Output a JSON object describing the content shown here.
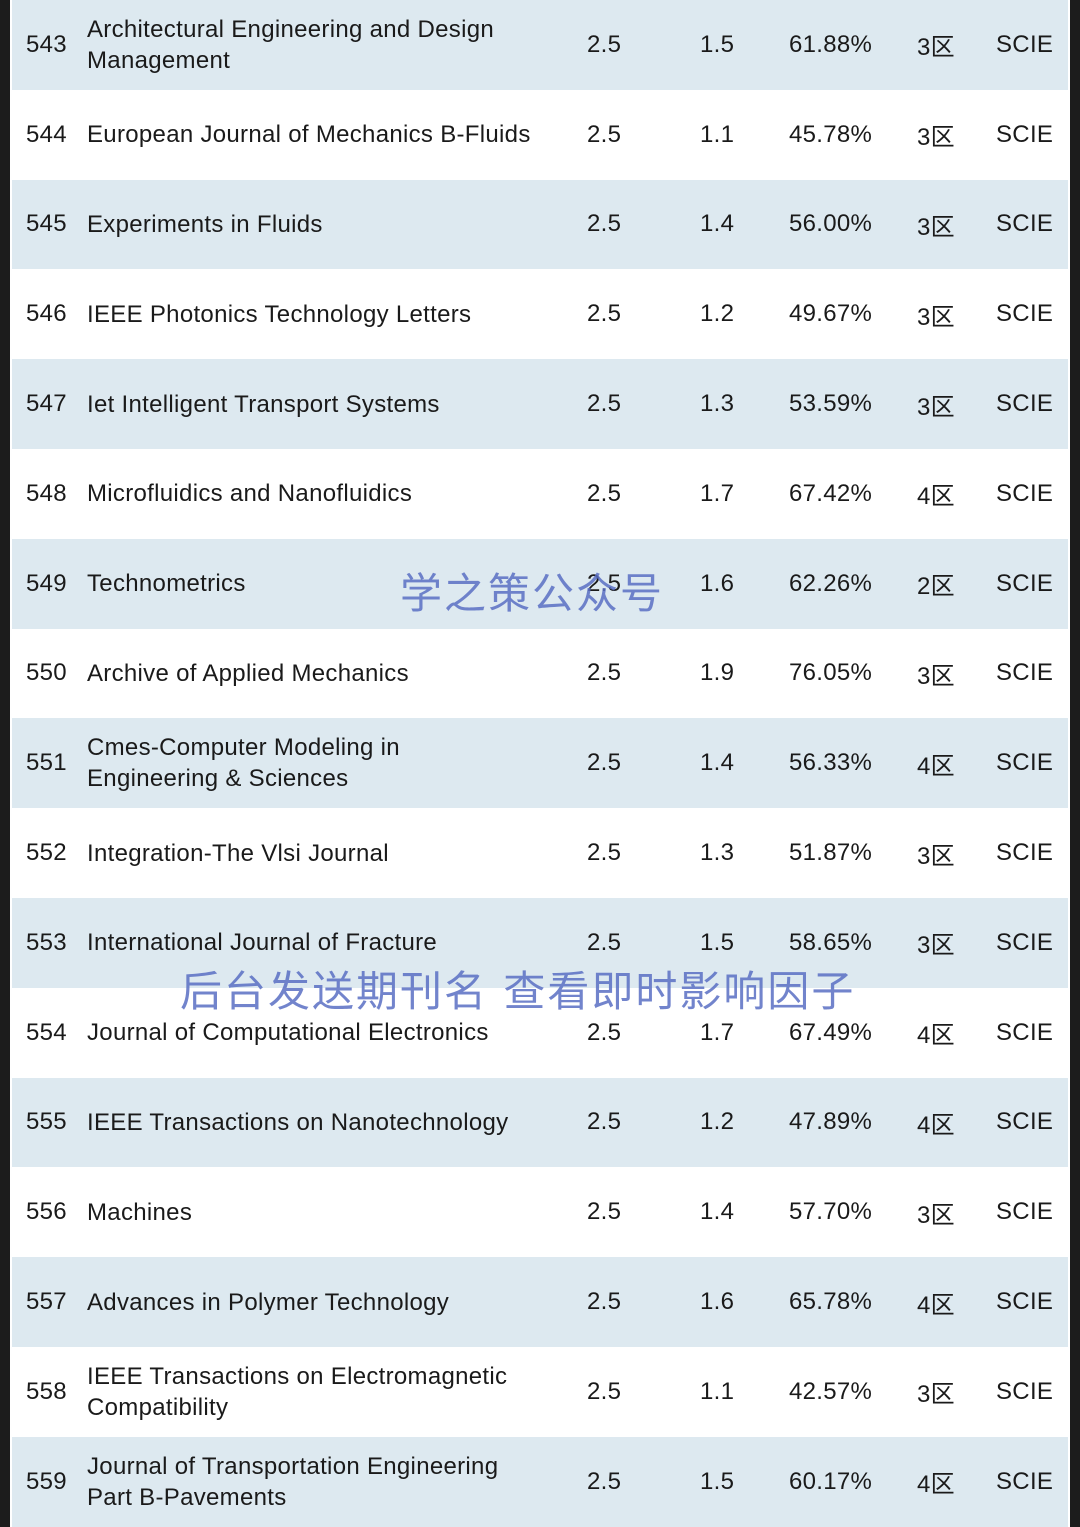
{
  "rows": [
    {
      "num": "543",
      "name": "Architectural Engineering and Design Management",
      "if": "2.5",
      "jci": "1.5",
      "pct": "61.88%",
      "zone": "3区",
      "index": "SCIE"
    },
    {
      "num": "544",
      "name": "European Journal of Mechanics B-Fluids",
      "if": "2.5",
      "jci": "1.1",
      "pct": "45.78%",
      "zone": "3区",
      "index": "SCIE"
    },
    {
      "num": "545",
      "name": "Experiments in Fluids",
      "if": "2.5",
      "jci": "1.4",
      "pct": "56.00%",
      "zone": "3区",
      "index": "SCIE"
    },
    {
      "num": "546",
      "name": "IEEE Photonics Technology Letters",
      "if": "2.5",
      "jci": "1.2",
      "pct": "49.67%",
      "zone": "3区",
      "index": "SCIE"
    },
    {
      "num": "547",
      "name": "Iet Intelligent Transport Systems",
      "if": "2.5",
      "jci": "1.3",
      "pct": "53.59%",
      "zone": "3区",
      "index": "SCIE"
    },
    {
      "num": "548",
      "name": "Microfluidics and Nanofluidics",
      "if": "2.5",
      "jci": "1.7",
      "pct": "67.42%",
      "zone": "4区",
      "index": "SCIE"
    },
    {
      "num": "549",
      "name": "Technometrics",
      "if": "2.5",
      "jci": "1.6",
      "pct": "62.26%",
      "zone": "2区",
      "index": "SCIE"
    },
    {
      "num": "550",
      "name": "Archive of Applied Mechanics",
      "if": "2.5",
      "jci": "1.9",
      "pct": "76.05%",
      "zone": "3区",
      "index": "SCIE"
    },
    {
      "num": "551",
      "name": "Cmes-Computer Modeling in Engineering & Sciences",
      "if": "2.5",
      "jci": "1.4",
      "pct": "56.33%",
      "zone": "4区",
      "index": "SCIE"
    },
    {
      "num": "552",
      "name": "Integration-The Vlsi Journal",
      "if": "2.5",
      "jci": "1.3",
      "pct": "51.87%",
      "zone": "3区",
      "index": "SCIE"
    },
    {
      "num": "553",
      "name": "International Journal of Fracture",
      "if": "2.5",
      "jci": "1.5",
      "pct": "58.65%",
      "zone": "3区",
      "index": "SCIE"
    },
    {
      "num": "554",
      "name": "Journal of Computational Electronics",
      "if": "2.5",
      "jci": "1.7",
      "pct": "67.49%",
      "zone": "4区",
      "index": "SCIE"
    },
    {
      "num": "555",
      "name": "IEEE Transactions on Nanotechnology",
      "if": "2.5",
      "jci": "1.2",
      "pct": "47.89%",
      "zone": "4区",
      "index": "SCIE"
    },
    {
      "num": "556",
      "name": "Machines",
      "if": "2.5",
      "jci": "1.4",
      "pct": "57.70%",
      "zone": "3区",
      "index": "SCIE"
    },
    {
      "num": "557",
      "name": "Advances in Polymer Technology",
      "if": "2.5",
      "jci": "1.6",
      "pct": "65.78%",
      "zone": "4区",
      "index": "SCIE"
    },
    {
      "num": "558",
      "name": "IEEE Transactions on Electromagnetic Compatibility",
      "if": "2.5",
      "jci": "1.1",
      "pct": "42.57%",
      "zone": "3区",
      "index": "SCIE"
    },
    {
      "num": "559",
      "name": "Journal of Transportation Engineering Part B-Pavements",
      "if": "2.5",
      "jci": "1.5",
      "pct": "60.17%",
      "zone": "4区",
      "index": "SCIE"
    }
  ],
  "watermarks": {
    "account": "学之策公众号",
    "instruction": "后台发送期刊名 查看即时影响因子"
  },
  "colors": {
    "row_shaded": "#dde9f0",
    "row_plain": "#ffffff",
    "watermark": "#5a6fc4",
    "side_border": "#1c1c1c"
  }
}
